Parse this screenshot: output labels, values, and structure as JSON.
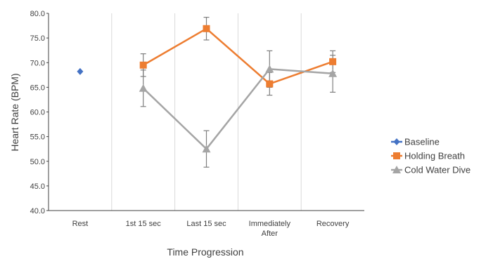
{
  "chart_data": {
    "type": "line",
    "title": "",
    "xlabel": "Time Progression",
    "ylabel": "Heart Rate (BPM)",
    "ylim": [
      40,
      80
    ],
    "y_ticks": [
      "40.0",
      "45.0",
      "50.0",
      "55.0",
      "60.0",
      "65.0",
      "70.0",
      "75.0",
      "80.0"
    ],
    "categories": [
      {
        "lines": [
          "Rest"
        ]
      },
      {
        "lines": [
          "1st 15 sec"
        ]
      },
      {
        "lines": [
          "Last 15 sec"
        ]
      },
      {
        "lines": [
          "Immediately",
          "After"
        ]
      },
      {
        "lines": [
          "Recovery"
        ]
      }
    ],
    "grid": "vertical",
    "legend_position": "right",
    "series": [
      {
        "name": "Baseline",
        "marker": "diamond",
        "color": "#4472C4",
        "values": [
          68.2,
          null,
          null,
          null,
          null
        ],
        "error_low": [
          null,
          null,
          null,
          null,
          null
        ],
        "error_high": [
          null,
          null,
          null,
          null,
          null
        ]
      },
      {
        "name": "Holding Breath",
        "marker": "square",
        "color": "#ED7D31",
        "values": [
          null,
          69.5,
          76.9,
          65.7,
          70.2
        ],
        "error_low": [
          null,
          67.2,
          74.6,
          63.4,
          68.0
        ],
        "error_high": [
          null,
          71.8,
          79.2,
          68.0,
          72.4
        ]
      },
      {
        "name": "Cold Water Dive",
        "marker": "triangle",
        "color": "#A5A5A5",
        "values": [
          null,
          64.8,
          52.5,
          68.7,
          67.8
        ],
        "error_low": [
          null,
          61.1,
          48.8,
          65.0,
          64.0
        ],
        "error_high": [
          null,
          68.5,
          56.2,
          72.4,
          71.5
        ]
      }
    ]
  }
}
